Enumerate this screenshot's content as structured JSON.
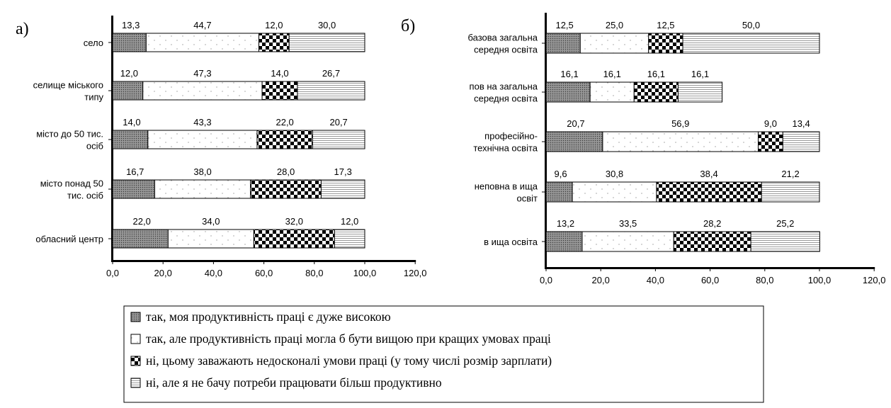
{
  "chart_data": [
    {
      "type": "bar",
      "stacked": true,
      "orientation": "horizontal",
      "panel_label": "а)",
      "categories": [
        "село",
        "селище міського типу",
        "місто до 50 тис. осіб",
        "місто понад 50 тис. осіб",
        "обласний центр"
      ],
      "series": [
        {
          "name": "так, моя продуктивність праці є дуже високою",
          "values": [
            13.3,
            12.0,
            14.0,
            16.7,
            22.0
          ]
        },
        {
          "name": "так, але продуктивність праці могла б бути вищою при кращих умовах праці",
          "values": [
            44.7,
            47.3,
            43.3,
            38.0,
            34.0
          ]
        },
        {
          "name": "ні, цьому заважають недосконалі умови праці (у тому числі розмір зарплати)",
          "values": [
            12.0,
            14.0,
            22.0,
            28.0,
            32.0
          ]
        },
        {
          "name": "ні, але я не бачу потреби працювати більш продуктивно",
          "values": [
            30.0,
            26.7,
            20.7,
            17.3,
            12.0
          ]
        }
      ],
      "xlim": [
        0,
        120
      ],
      "xticks": [
        "0,0",
        "20,0",
        "40,0",
        "60,0",
        "80,0",
        "100,0",
        "120,0"
      ],
      "grid": false
    },
    {
      "type": "bar",
      "stacked": true,
      "orientation": "horizontal",
      "panel_label": "б)",
      "categories": [
        "базова загальна середня освіта",
        "повна загальна середня освіта",
        "професійно-технічна освіта",
        "неповна вища освіт",
        "вища освіта"
      ],
      "series": [
        {
          "name": "так, моя продуктивність праці є дуже високою",
          "values": [
            12.5,
            16.1,
            20.7,
            9.6,
            13.2
          ]
        },
        {
          "name": "так, але продуктивність праці могла б бути вищою при кращих умовах праці",
          "values": [
            25.0,
            16.1,
            56.9,
            30.8,
            33.5
          ]
        },
        {
          "name": "ні, цьому заважають недосконалі умови праці (у тому числі розмір зарплати)",
          "values": [
            12.5,
            16.1,
            9.0,
            38.4,
            28.2
          ]
        },
        {
          "name": "ні, але я не бачу потреби працювати більш продуктивно",
          "values": [
            50.0,
            16.1,
            13.4,
            21.2,
            25.2
          ]
        }
      ],
      "xlim": [
        0,
        120
      ],
      "xticks": [
        "0,0",
        "20,0",
        "40,0",
        "60,0",
        "80,0",
        "100,0",
        "120,0"
      ],
      "grid": false
    }
  ],
  "panels": [
    {
      "label": "а)",
      "categories": [
        {
          "lines": [
            "село"
          ]
        },
        {
          "lines": [
            "селище міського",
            "типу"
          ]
        },
        {
          "lines": [
            "місто до 50 тис.",
            "осіб"
          ]
        },
        {
          "lines": [
            "місто понад 50",
            "тис. осіб"
          ]
        },
        {
          "lines": [
            "обласний центр"
          ]
        }
      ],
      "value_labels": [
        [
          "13,3",
          "44,7",
          "12,0",
          "30,0"
        ],
        [
          "12,0",
          "47,3",
          "14,0",
          "26,7"
        ],
        [
          "14,0",
          "43,3",
          "22,0",
          "20,7"
        ],
        [
          "16,7",
          "38,0",
          "28,0",
          "17,3"
        ],
        [
          "22,0",
          "34,0",
          "32,0",
          "12,0"
        ]
      ],
      "ticks": [
        "0,0",
        "20,0",
        "40,0",
        "60,0",
        "80,0",
        "100,0",
        "120,0"
      ]
    },
    {
      "label": "б)",
      "categories": [
        {
          "lines": [
            "базова загальна",
            "середня освіта"
          ]
        },
        {
          "lines": [
            "пов на загальна",
            "середня освіта"
          ]
        },
        {
          "lines": [
            "професійно-",
            "технічна освіта"
          ]
        },
        {
          "lines": [
            "неповна в ища",
            "освіт"
          ]
        },
        {
          "lines": [
            "в ища освіта"
          ]
        }
      ],
      "value_labels": [
        [
          "12,5",
          "25,0",
          "12,5",
          "50,0"
        ],
        [
          "16,1",
          "16,1",
          "16,1",
          "16,1"
        ],
        [
          "20,7",
          "56,9",
          "9,0",
          "13,4"
        ],
        [
          "9,6",
          "30,8",
          "38,4",
          "21,2"
        ],
        [
          "13,2",
          "33,5",
          "28,2",
          "25,2"
        ]
      ],
      "ticks": [
        "0,0",
        "20,0",
        "40,0",
        "60,0",
        "80,0",
        "100,0",
        "120,0"
      ]
    }
  ],
  "legend": [
    {
      "text": "так, моя продуктивність праці є дуже високою",
      "pattern": "dark-dots"
    },
    {
      "text": "так, але продуктивність праці могла б бути вищою при кращих умовах праці",
      "pattern": "light-dots"
    },
    {
      "text": "ні, цьому заважають недосконалі умови праці (у тому числі розмір зарплати)",
      "pattern": "checker"
    },
    {
      "text": "ні, але я не бачу потреби працювати більш продуктивно",
      "pattern": "hlines"
    }
  ],
  "colors": {
    "ink": "#000000",
    "dark_fill": "#8a8a8a",
    "background": "#ffffff"
  }
}
